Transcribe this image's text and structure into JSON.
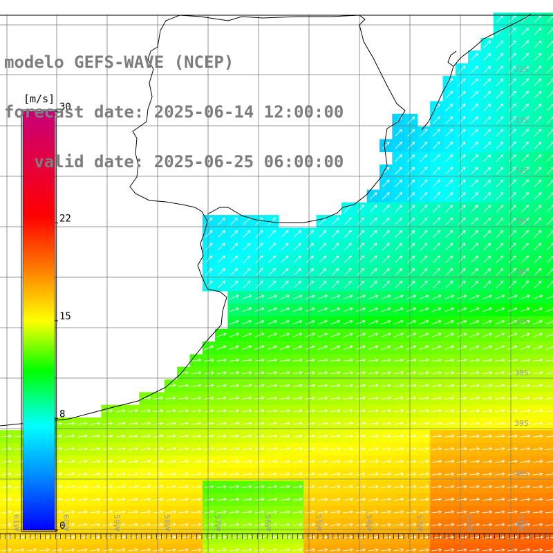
{
  "title": {
    "line1": "modelo GEFS-WAVE (NCEP)",
    "line2": "forecast date: 2025-06-14 12:00:00",
    "line3": "   valid date: 2025-06-25 06:00:00"
  },
  "colorbar": {
    "unit": "[m/s]",
    "min": 0,
    "max": 30,
    "tick_labels": [
      "30",
      "22",
      "15",
      "8",
      "0"
    ],
    "tick_values": [
      30,
      22,
      15,
      8,
      0
    ]
  },
  "map": {
    "lat_labels": [
      "32S",
      "33S",
      "34S",
      "35S",
      "36S",
      "37S",
      "38S",
      "39S",
      "40S",
      "41S"
    ],
    "lon_labels": [
      "61W",
      "60W",
      "59W",
      "58W",
      "57W",
      "56W",
      "55W",
      "54W",
      "53W",
      "52W",
      "51W"
    ],
    "colors": {
      "land": "#ffffff",
      "grid": "#7a7a7a",
      "coast": "#000000",
      "arrows": "#ffffff",
      "labels": "#9a9a9a"
    }
  }
}
